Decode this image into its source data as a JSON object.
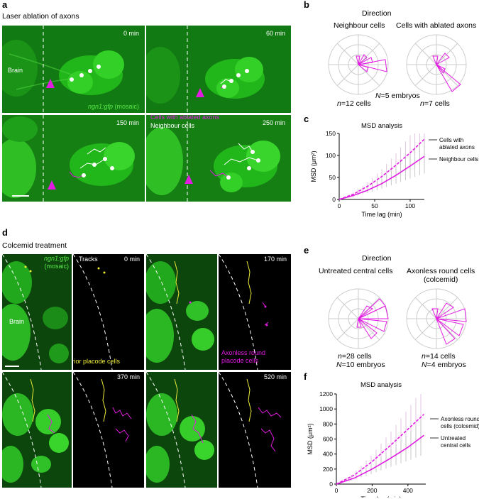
{
  "panel_a": {
    "label": "a",
    "title": "Laser ablation of axons",
    "times": [
      "0 min",
      "60 min",
      "150 min",
      "250 min"
    ],
    "brain": "Brain",
    "marker_italic": "ngn1:gfp",
    "marker_rest": " (mosaic)",
    "legend_magenta": "Cells with ablated axons",
    "legend_white": "Neighbour cells"
  },
  "panel_b": {
    "label": "b",
    "title": "Direction",
    "left_title": "Neighbour cells",
    "right_title": "Cells with ablated axons",
    "embryos_prefix": "N",
    "embryos_rest": "=5 embryos",
    "left_n_prefix": "n",
    "left_n_rest": "=12 cells",
    "right_n_prefix": "n",
    "right_n_rest": "=7 cells"
  },
  "panel_c": {
    "label": "c",
    "chart_data": {
      "type": "line",
      "title": "MSD analysis",
      "xlabel": "Time lag (min)",
      "ylabel": "MSD (μm²)",
      "xlim": [
        0,
        120
      ],
      "ylim": [
        0,
        150
      ],
      "xticks": [
        0,
        50,
        100
      ],
      "yticks": [
        0,
        50,
        100,
        150
      ],
      "series": [
        {
          "name": "Cells with ablated axons",
          "style": "dashed",
          "color": "#e21be2",
          "x": [
            0,
            20,
            40,
            60,
            80,
            100,
            120
          ],
          "y": [
            0,
            12,
            30,
            52,
            78,
            106,
            137
          ]
        },
        {
          "name": "Neighbour cells",
          "style": "solid",
          "color": "#e21be2",
          "x": [
            0,
            20,
            40,
            60,
            80,
            100,
            120
          ],
          "y": [
            0,
            9,
            21,
            36,
            55,
            76,
            98
          ]
        }
      ]
    },
    "legend_dashed": [
      "Cells with",
      "ablated axons"
    ],
    "legend_solid": "Neighbour cells"
  },
  "panel_d": {
    "label": "d",
    "title": "Colcemid treatment",
    "marker_italic": "ngn1:gfp",
    "marker_rest": "(mosaic)",
    "tracks": "Tracks",
    "times": [
      "0 min",
      "170 min",
      "370 min",
      "520 min"
    ],
    "brain": "Brain",
    "anterior": "Anterior placode cells",
    "axonless": [
      "Axonless round",
      "placode cells"
    ]
  },
  "panel_e": {
    "label": "e",
    "title": "Direction",
    "left_title": "Untreated central cells",
    "right_title": [
      "Axonless round cells",
      "(colcemid)"
    ],
    "left_n_prefix": "n",
    "left_n_rest": "=28 cells",
    "left_N_prefix": "N",
    "left_N_rest": "=10 embryos",
    "right_n_prefix": "n",
    "right_n_rest": "=14 cells",
    "right_N_prefix": "N",
    "right_N_rest": "=4 embryos"
  },
  "panel_f": {
    "label": "f",
    "chart_data": {
      "type": "line",
      "title": "MSD analysis",
      "xlabel": "Time lag (min)",
      "ylabel": "MSD (μm²)",
      "xlim": [
        0,
        500
      ],
      "ylim": [
        0,
        1200
      ],
      "xticks": [
        0,
        200,
        400
      ],
      "yticks": [
        0,
        200,
        400,
        600,
        800,
        1000,
        1200
      ],
      "series": [
        {
          "name": "Axonless round cells (colcemid)",
          "style": "dashed",
          "color": "#e21be2",
          "x": [
            0,
            100,
            200,
            300,
            400,
            490
          ],
          "y": [
            0,
            120,
            300,
            510,
            730,
            930
          ]
        },
        {
          "name": "Untreated central cells",
          "style": "solid",
          "color": "#e21be2",
          "x": [
            0,
            100,
            200,
            300,
            400,
            490
          ],
          "y": [
            0,
            80,
            200,
            340,
            490,
            650
          ]
        }
      ]
    },
    "legend_dashed": [
      "Axonless round",
      "cells (colcemid)"
    ],
    "legend_solid": [
      "Untreated",
      "central cells"
    ]
  },
  "colors": {
    "magenta": "#e21be2",
    "gfp_green": "#22a81a",
    "yellow": "#ecec3a",
    "grid": "#cccccc"
  }
}
